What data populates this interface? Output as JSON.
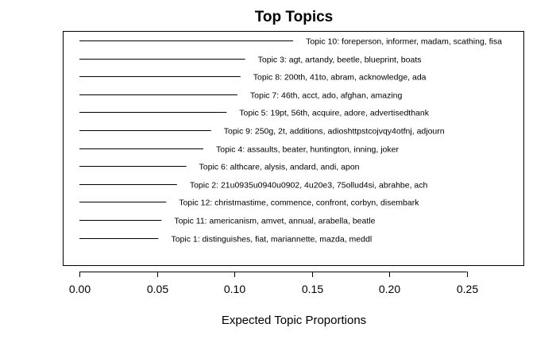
{
  "chart_data": {
    "type": "bar",
    "orientation": "horizontal",
    "title": "Top Topics",
    "xlabel": "Expected Topic Proportions",
    "ylabel": "",
    "xlim": [
      0,
      0.28
    ],
    "xticks": [
      0.0,
      0.05,
      0.1,
      0.15,
      0.2,
      0.25
    ],
    "xtick_labels": [
      "0.00",
      "0.05",
      "0.10",
      "0.15",
      "0.20",
      "0.25"
    ],
    "grid": false,
    "topics": [
      {
        "label": "Topic 10: foreperson, informer, madam, scathing, fisa",
        "value": 0.138
      },
      {
        "label": "Topic 3: agt, artandy, beetle, blueprint, boats",
        "value": 0.107
      },
      {
        "label": "Topic 8: 200th, 41to, abram, acknowledge, ada",
        "value": 0.104
      },
      {
        "label": "Topic 7: 46th, acct, ado, afghan, amazing",
        "value": 0.102
      },
      {
        "label": "Topic 5: 19pt, 56th, acquire, adore, advertisedthank",
        "value": 0.095
      },
      {
        "label": "Topic 9: 250g, 2t, additions, adioshttpstcojvqy4otfnj, adjourn",
        "value": 0.085
      },
      {
        "label": "Topic 4: assaults, beater, huntington, inning, joker",
        "value": 0.08
      },
      {
        "label": "Topic 6: althcare, alysis, andard, andi, apon",
        "value": 0.069
      },
      {
        "label": "Topic 2: 21u0935u0940u0902, 4u20e3, 75ollud4si, abrahbe, ach",
        "value": 0.063
      },
      {
        "label": "Topic 12: christmastime, commence, confront, corbyn, disembark",
        "value": 0.056
      },
      {
        "label": "Topic 11: americanism, amvet, annual, arabella, beatle",
        "value": 0.053
      },
      {
        "label": "Topic 1: distinguishes, fiat, mariannette, mazda, meddl",
        "value": 0.051
      }
    ]
  }
}
